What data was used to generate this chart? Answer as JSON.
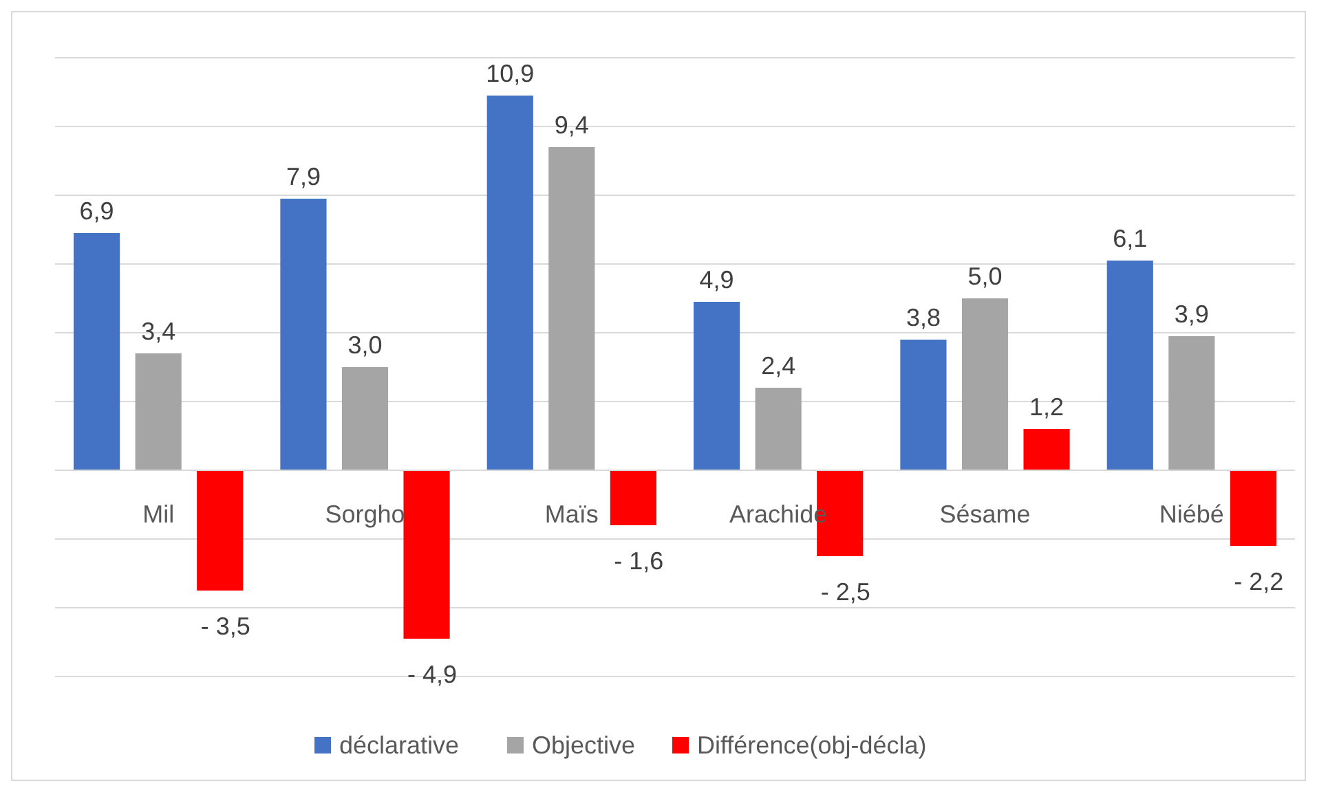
{
  "chart_data": {
    "type": "bar",
    "categories": [
      "Mil",
      "Sorgho",
      "Maïs",
      "Arachide",
      "Sésame",
      "Niébé"
    ],
    "series": [
      {
        "name": "déclarative",
        "color": "#4472c4",
        "values": [
          6.9,
          7.9,
          10.9,
          4.9,
          3.8,
          6.1
        ],
        "value_labels": [
          "6,9",
          "7,9",
          "10,9",
          "4,9",
          "3,8",
          "6,1"
        ]
      },
      {
        "name": "Objective",
        "color": "#a5a5a5",
        "values": [
          3.4,
          3.0,
          9.4,
          2.4,
          5.0,
          3.9
        ],
        "value_labels": [
          "3,4",
          "3,0",
          "9,4",
          "2,4",
          "5,0",
          "3,9"
        ]
      },
      {
        "name": "Différence(obj-décla)",
        "color": "#ff0000",
        "values": [
          -3.5,
          -4.9,
          -1.6,
          -2.5,
          1.2,
          -2.2
        ],
        "value_labels": [
          "- 3,5",
          "- 4,9",
          "- 1,6",
          "- 2,5",
          "1,2",
          "- 2,2"
        ]
      }
    ],
    "ylim": [
      -6,
      12
    ],
    "yticks": [
      {
        "value": -6,
        "label": null
      },
      {
        "value": -4,
        "label": null
      },
      {
        "value": -2,
        "label": null
      },
      {
        "value": 0,
        "label": null
      },
      {
        "value": 2,
        "label": null
      },
      {
        "value": 4,
        "label": null
      },
      {
        "value": 6,
        "label": null
      },
      {
        "value": 8,
        "label": null
      },
      {
        "value": 10,
        "label": null
      },
      {
        "value": 12,
        "label": null
      }
    ],
    "grid": "y",
    "legend": "bottom",
    "tick_labels": "x"
  }
}
